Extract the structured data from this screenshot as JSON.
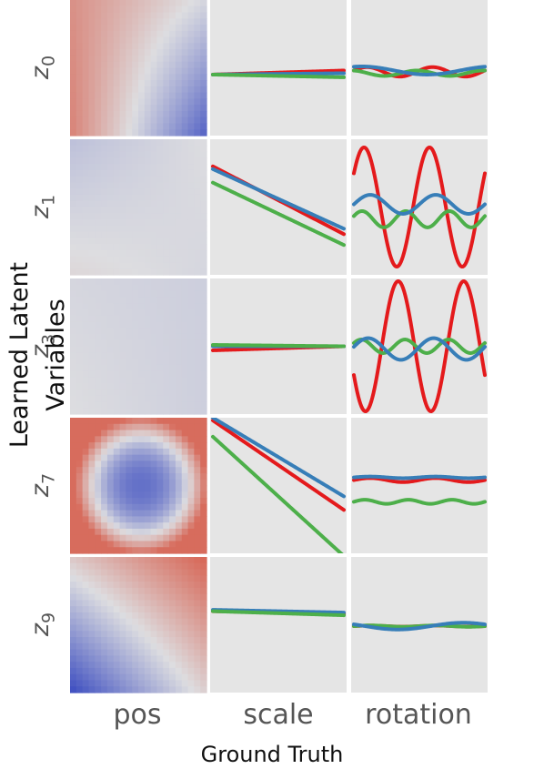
{
  "figure": {
    "ylabel": "Learned Latent Variables",
    "xlabel": "Ground Truth",
    "columns": [
      "pos",
      "scale",
      "rotation"
    ],
    "rows": [
      {
        "name": "z",
        "sub": "0"
      },
      {
        "name": "z",
        "sub": "1"
      },
      {
        "name": "z",
        "sub": "3"
      },
      {
        "name": "z",
        "sub": "7"
      },
      {
        "name": "z",
        "sub": "9"
      }
    ]
  },
  "colors": {
    "red": "#e41a1c",
    "blue": "#377eb8",
    "green": "#4daf4a",
    "panel_bg": "#e5e5e5"
  },
  "chart_data": {
    "type": "heatmap",
    "pos_heatmaps": [
      {
        "latent": "z0",
        "pattern": "diagonal",
        "tl": 0.55,
        "tr": -0.05,
        "bl": 0.65,
        "br": -0.85
      },
      {
        "latent": "z1",
        "pattern": "near_constant",
        "tl": -0.2,
        "tr": 0.0,
        "bl": 0.05,
        "br": -0.05
      },
      {
        "latent": "z3",
        "pattern": "near_constant",
        "tl": -0.05,
        "tr": -0.1,
        "bl": 0.0,
        "br": -0.1
      },
      {
        "latent": "z7",
        "pattern": "radial",
        "center": -0.75,
        "edge": 0.8
      },
      {
        "latent": "z9",
        "pattern": "diagonal",
        "tl": 0.15,
        "tr": 0.85,
        "bl": -1.0,
        "br": 0.1
      }
    ],
    "scale_lines": [
      {
        "latent": "z0",
        "series": [
          {
            "name": "red",
            "start": 0.45,
            "end": 0.48
          },
          {
            "name": "blue",
            "start": 0.45,
            "end": 0.46
          },
          {
            "name": "green",
            "start": 0.45,
            "end": 0.43
          }
        ]
      },
      {
        "latent": "z1",
        "series": [
          {
            "name": "red",
            "start": 0.8,
            "end": 0.3
          },
          {
            "name": "blue",
            "start": 0.78,
            "end": 0.34
          },
          {
            "name": "green",
            "start": 0.68,
            "end": 0.22
          }
        ]
      },
      {
        "latent": "z3",
        "series": [
          {
            "name": "red",
            "start": 0.47,
            "end": 0.5
          },
          {
            "name": "blue",
            "start": 0.5,
            "end": 0.5
          },
          {
            "name": "green",
            "start": 0.51,
            "end": 0.5
          }
        ]
      },
      {
        "latent": "z7",
        "series": [
          {
            "name": "red",
            "start": 0.98,
            "end": 0.32
          },
          {
            "name": "blue",
            "start": 1.0,
            "end": 0.42
          },
          {
            "name": "green",
            "start": 0.86,
            "end": -0.02
          }
        ]
      },
      {
        "latent": "z9",
        "series": [
          {
            "name": "red",
            "start": 0.6,
            "end": 0.58
          },
          {
            "name": "blue",
            "start": 0.61,
            "end": 0.59
          },
          {
            "name": "green",
            "start": 0.6,
            "end": 0.57
          }
        ]
      }
    ],
    "rotation_lines": [
      {
        "latent": "z0",
        "series": [
          {
            "name": "red",
            "mean": 0.47,
            "amp": 0.035,
            "cycles": 2,
            "phase": 0.3
          },
          {
            "name": "green",
            "mean": 0.46,
            "amp": 0.02,
            "cycles": 2,
            "phase": 1.8
          },
          {
            "name": "blue",
            "mean": 0.48,
            "amp": 0.03,
            "cycles": 1,
            "phase": 1.2
          }
        ]
      },
      {
        "latent": "z1",
        "series": [
          {
            "name": "red",
            "mean": 0.5,
            "amp": 0.44,
            "cycles": 2,
            "phase": 0.6
          },
          {
            "name": "green",
            "mean": 0.41,
            "amp": 0.06,
            "cycles": 3,
            "phase": 0.4
          },
          {
            "name": "blue",
            "mean": 0.52,
            "amp": 0.07,
            "cycles": 2,
            "phase": 0.0
          }
        ]
      },
      {
        "latent": "z3",
        "series": [
          {
            "name": "red",
            "mean": 0.5,
            "amp": 0.48,
            "cycles": 2,
            "phase": 3.6
          },
          {
            "name": "green",
            "mean": 0.5,
            "amp": 0.05,
            "cycles": 3,
            "phase": 0.5
          },
          {
            "name": "blue",
            "mean": 0.48,
            "amp": 0.08,
            "cycles": 2,
            "phase": 0.2
          }
        ]
      },
      {
        "latent": "z7",
        "series": [
          {
            "name": "red",
            "mean": 0.54,
            "amp": 0.015,
            "cycles": 2,
            "phase": 0.0
          },
          {
            "name": "green",
            "mean": 0.38,
            "amp": 0.015,
            "cycles": 3,
            "phase": 0.0
          },
          {
            "name": "blue",
            "mean": 0.56,
            "amp": 0.006,
            "cycles": 2,
            "phase": 0.0
          }
        ]
      },
      {
        "latent": "z9",
        "series": [
          {
            "name": "red",
            "mean": 0.49,
            "amp": 0.004,
            "cycles": 2,
            "phase": 0.0
          },
          {
            "name": "green",
            "mean": 0.49,
            "amp": 0.005,
            "cycles": 2,
            "phase": 0.0
          },
          {
            "name": "blue",
            "mean": 0.49,
            "amp": 0.025,
            "cycles": 1,
            "phase": 2.6
          }
        ]
      }
    ]
  }
}
